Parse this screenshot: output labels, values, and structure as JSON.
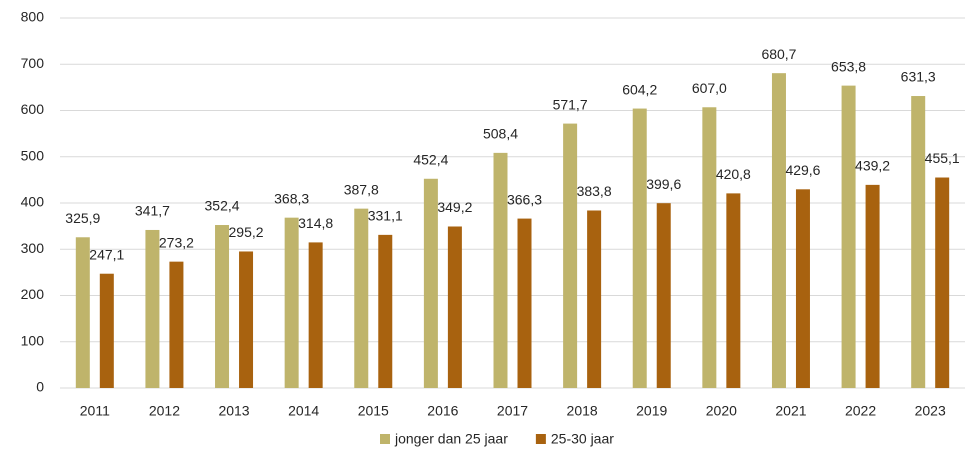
{
  "chart_data": {
    "type": "bar",
    "categories": [
      "2011",
      "2012",
      "2013",
      "2014",
      "2015",
      "2016",
      "2017",
      "2018",
      "2019",
      "2020",
      "2021",
      "2022",
      "2023"
    ],
    "series": [
      {
        "name": "jonger dan 25 jaar",
        "color": "#bfb46b",
        "values": [
          325.9,
          341.7,
          352.4,
          368.3,
          387.8,
          452.4,
          508.4,
          571.7,
          604.2,
          607.0,
          680.7,
          653.8,
          631.3
        ],
        "value_labels": [
          "325,9",
          "341,7",
          "352,4",
          "368,3",
          "387,8",
          "452,4",
          "508,4",
          "571,7",
          "604,2",
          "607,0",
          "680,7",
          "653,8",
          "631,3"
        ]
      },
      {
        "name": "25-30 jaar",
        "color": "#a8620f",
        "values": [
          247.1,
          273.2,
          295.2,
          314.8,
          331.1,
          349.2,
          366.3,
          383.8,
          399.6,
          420.8,
          429.6,
          439.2,
          455.1
        ],
        "value_labels": [
          "247,1",
          "273,2",
          "295,2",
          "314,8",
          "331,1",
          "349,2",
          "366,3",
          "383,8",
          "399,6",
          "420,8",
          "429,6",
          "439,2",
          "455,1"
        ]
      }
    ],
    "ylim": [
      0,
      800
    ],
    "yticks": [
      0,
      100,
      200,
      300,
      400,
      500,
      600,
      700,
      800
    ],
    "grid": true,
    "legend": "bottom"
  }
}
